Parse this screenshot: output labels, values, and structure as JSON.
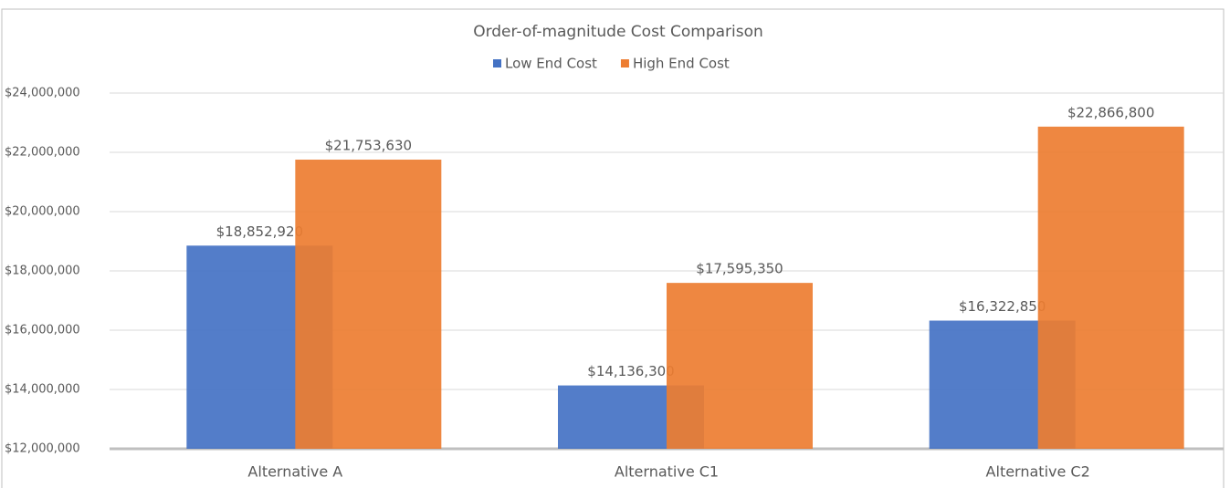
{
  "chart_data": {
    "type": "bar",
    "title": "Order-of-magnitude Cost Comparison",
    "categories": [
      "Alternative A",
      "Alternative C1",
      "Alternative C2"
    ],
    "series": [
      {
        "name": "Low End Cost",
        "color": "#4472c4",
        "values": [
          18852920,
          14136300,
          16322850
        ],
        "value_labels": [
          "$18,852,920",
          "$14,136,300",
          "$16,322,850"
        ]
      },
      {
        "name": "High End Cost",
        "color": "#ed7d31",
        "values": [
          21753630,
          17595350,
          22866800
        ],
        "value_labels": [
          "$21,753,630",
          "$17,595,350",
          "$22,866,800"
        ]
      }
    ],
    "ylim": [
      12000000,
      24000000
    ],
    "yticks": [
      {
        "value": 12000000,
        "label": "$12,000,000"
      },
      {
        "value": 14000000,
        "label": "$14,000,000"
      },
      {
        "value": 16000000,
        "label": "$16,000,000"
      },
      {
        "value": 18000000,
        "label": "$18,000,000"
      },
      {
        "value": 20000000,
        "label": "$20,000,000"
      },
      {
        "value": 22000000,
        "label": "$22,000,000"
      },
      {
        "value": 24000000,
        "label": "$24,000,000"
      }
    ],
    "grid": true,
    "legend": "top"
  }
}
